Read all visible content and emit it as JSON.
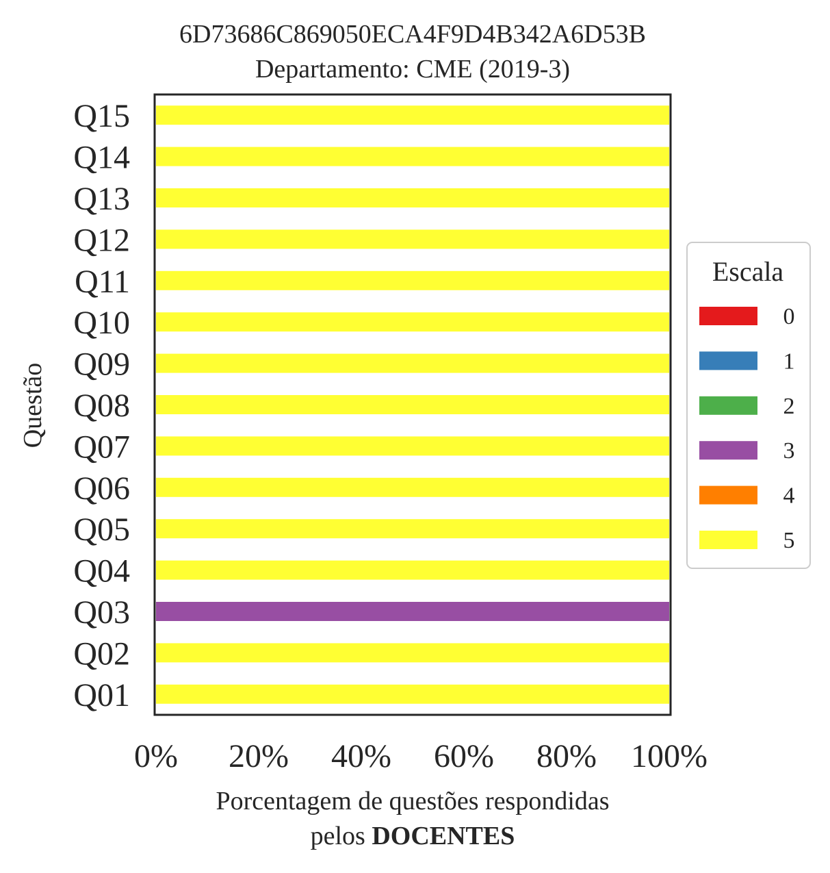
{
  "chart_data": {
    "type": "bar",
    "orientation": "horizontal",
    "stacked": true,
    "title": "6D73686C869050ECA4F9D4B342A6D53B",
    "subtitle": "Departamento: CME (2019-3)",
    "xlabel": "Porcentagem de questões respondidas",
    "xlabel_line2_prefix": "pelos ",
    "xlabel_line2_bold": "DOCENTES",
    "ylabel": "Questão",
    "xlim": [
      0,
      100
    ],
    "xticks": [
      "0%",
      "20%",
      "40%",
      "60%",
      "80%",
      "100%"
    ],
    "grid": false,
    "legend": {
      "title": "Escala",
      "placement": "right",
      "entries": [
        {
          "label": "0",
          "color": "#e41a1c"
        },
        {
          "label": "1",
          "color": "#377eb8"
        },
        {
          "label": "2",
          "color": "#4daf4a"
        },
        {
          "label": "3",
          "color": "#984ea3"
        },
        {
          "label": "4",
          "color": "#ff7f00"
        },
        {
          "label": "5",
          "color": "#ffff33"
        }
      ]
    },
    "categories": [
      "Q01",
      "Q02",
      "Q03",
      "Q04",
      "Q05",
      "Q06",
      "Q07",
      "Q08",
      "Q09",
      "Q10",
      "Q11",
      "Q12",
      "Q13",
      "Q14",
      "Q15"
    ],
    "series": [
      {
        "name": "0",
        "color": "#e41a1c",
        "values": [
          0,
          0,
          0,
          0,
          0,
          0,
          0,
          0,
          0,
          0,
          0,
          0,
          0,
          0,
          0
        ]
      },
      {
        "name": "1",
        "color": "#377eb8",
        "values": [
          0,
          0,
          0,
          0,
          0,
          0,
          0,
          0,
          0,
          0,
          0,
          0,
          0,
          0,
          0
        ]
      },
      {
        "name": "2",
        "color": "#4daf4a",
        "values": [
          0,
          0,
          0,
          0,
          0,
          0,
          0,
          0,
          0,
          0,
          0,
          0,
          0,
          0,
          0
        ]
      },
      {
        "name": "3",
        "color": "#984ea3",
        "values": [
          0,
          0,
          100,
          0,
          0,
          0,
          0,
          0,
          0,
          0,
          0,
          0,
          0,
          0,
          0
        ]
      },
      {
        "name": "4",
        "color": "#ff7f00",
        "values": [
          0,
          0,
          0,
          0,
          0,
          0,
          0,
          0,
          0,
          0,
          0,
          0,
          0,
          0,
          0
        ]
      },
      {
        "name": "5",
        "color": "#ffff33",
        "values": [
          100,
          100,
          0,
          100,
          100,
          100,
          100,
          100,
          100,
          100,
          100,
          100,
          100,
          100,
          100
        ]
      }
    ]
  }
}
